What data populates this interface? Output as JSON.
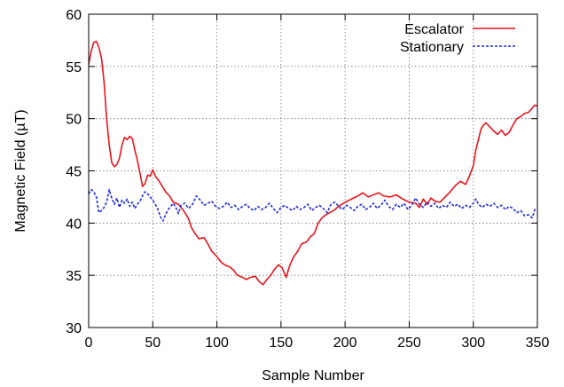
{
  "chart_data": {
    "type": "line",
    "title": "",
    "xlabel": "Sample Number",
    "ylabel": "Magnetic Field (µT)",
    "xlim": [
      0,
      350
    ],
    "ylim": [
      30,
      60
    ],
    "xticks": [
      0,
      50,
      100,
      150,
      200,
      250,
      300,
      350
    ],
    "yticks": [
      30,
      35,
      40,
      45,
      50,
      55,
      60
    ],
    "x_tick_labels": [
      "0",
      "50",
      "100",
      "150",
      "200",
      "250",
      "300",
      "350"
    ],
    "y_tick_labels": [
      "30",
      "35",
      "40",
      "45",
      "50",
      "55",
      "60"
    ],
    "grid": true,
    "legend_position": "top-right",
    "series": [
      {
        "name": "Escalator",
        "color": "#e8141c",
        "style": "solid",
        "points": [
          [
            0,
            55.2
          ],
          [
            2,
            56.5
          ],
          [
            4,
            57.3
          ],
          [
            6,
            57.4
          ],
          [
            8,
            56.8
          ],
          [
            10,
            55.8
          ],
          [
            12,
            53.5
          ],
          [
            14,
            50.0
          ],
          [
            16,
            47.5
          ],
          [
            18,
            45.8
          ],
          [
            20,
            45.4
          ],
          [
            22,
            45.6
          ],
          [
            24,
            46.2
          ],
          [
            26,
            47.5
          ],
          [
            28,
            48.2
          ],
          [
            30,
            48.0
          ],
          [
            32,
            48.3
          ],
          [
            34,
            48.1
          ],
          [
            36,
            47.0
          ],
          [
            38,
            46.0
          ],
          [
            40,
            44.8
          ],
          [
            42,
            43.5
          ],
          [
            44,
            43.8
          ],
          [
            46,
            44.6
          ],
          [
            48,
            44.5
          ],
          [
            50,
            45.1
          ],
          [
            52,
            44.5
          ],
          [
            55,
            44.0
          ],
          [
            58,
            43.4
          ],
          [
            60,
            43.0
          ],
          [
            63,
            42.6
          ],
          [
            66,
            42.0
          ],
          [
            70,
            41.8
          ],
          [
            74,
            41.2
          ],
          [
            78,
            40.4
          ],
          [
            80,
            39.6
          ],
          [
            83,
            39.0
          ],
          [
            86,
            38.5
          ],
          [
            90,
            38.6
          ],
          [
            93,
            38.0
          ],
          [
            96,
            37.3
          ],
          [
            100,
            36.8
          ],
          [
            103,
            36.3
          ],
          [
            106,
            36.0
          ],
          [
            110,
            35.8
          ],
          [
            113,
            35.5
          ],
          [
            116,
            35.0
          ],
          [
            120,
            34.8
          ],
          [
            123,
            34.6
          ],
          [
            126,
            34.8
          ],
          [
            130,
            34.9
          ],
          [
            133,
            34.4
          ],
          [
            136,
            34.1
          ],
          [
            139,
            34.6
          ],
          [
            142,
            35.0
          ],
          [
            145,
            35.6
          ],
          [
            148,
            36.0
          ],
          [
            151,
            35.7
          ],
          [
            154,
            34.8
          ],
          [
            157,
            36.0
          ],
          [
            160,
            36.8
          ],
          [
            163,
            37.3
          ],
          [
            166,
            38.0
          ],
          [
            170,
            38.2
          ],
          [
            173,
            38.7
          ],
          [
            176,
            39.0
          ],
          [
            179,
            40.0
          ],
          [
            182,
            40.5
          ],
          [
            185,
            40.8
          ],
          [
            188,
            41.0
          ],
          [
            191,
            41.2
          ],
          [
            195,
            41.6
          ],
          [
            200,
            42.0
          ],
          [
            205,
            42.3
          ],
          [
            210,
            42.6
          ],
          [
            214,
            42.9
          ],
          [
            218,
            42.5
          ],
          [
            222,
            42.7
          ],
          [
            226,
            42.9
          ],
          [
            230,
            42.6
          ],
          [
            235,
            42.5
          ],
          [
            240,
            42.7
          ],
          [
            245,
            42.3
          ],
          [
            250,
            42.0
          ],
          [
            255,
            41.9
          ],
          [
            258,
            41.5
          ],
          [
            261,
            42.3
          ],
          [
            264,
            41.8
          ],
          [
            267,
            42.4
          ],
          [
            270,
            42.1
          ],
          [
            274,
            42.0
          ],
          [
            278,
            42.5
          ],
          [
            282,
            43.0
          ],
          [
            286,
            43.6
          ],
          [
            290,
            44.0
          ],
          [
            294,
            43.7
          ],
          [
            297,
            44.5
          ],
          [
            300,
            45.5
          ],
          [
            302,
            47.0
          ],
          [
            304,
            48.0
          ],
          [
            306,
            49.0
          ],
          [
            308,
            49.4
          ],
          [
            310,
            49.6
          ],
          [
            313,
            49.2
          ],
          [
            316,
            48.8
          ],
          [
            319,
            48.5
          ],
          [
            322,
            48.9
          ],
          [
            325,
            48.4
          ],
          [
            328,
            48.7
          ],
          [
            331,
            49.4
          ],
          [
            334,
            50.0
          ],
          [
            337,
            50.2
          ],
          [
            340,
            50.5
          ],
          [
            343,
            50.6
          ],
          [
            346,
            51.0
          ],
          [
            348,
            51.3
          ],
          [
            350,
            51.2
          ]
        ]
      },
      {
        "name": "Stationary",
        "color": "#1c2bd9",
        "style": "dashed",
        "points": [
          [
            0,
            42.8
          ],
          [
            2,
            43.2
          ],
          [
            4,
            43.0
          ],
          [
            6,
            42.5
          ],
          [
            8,
            41.0
          ],
          [
            10,
            41.2
          ],
          [
            12,
            41.5
          ],
          [
            14,
            42.0
          ],
          [
            16,
            43.2
          ],
          [
            18,
            42.4
          ],
          [
            20,
            41.8
          ],
          [
            22,
            42.4
          ],
          [
            24,
            41.5
          ],
          [
            26,
            42.2
          ],
          [
            28,
            41.9
          ],
          [
            30,
            42.3
          ],
          [
            32,
            41.6
          ],
          [
            34,
            42.0
          ],
          [
            36,
            41.4
          ],
          [
            38,
            41.8
          ],
          [
            40,
            42.1
          ],
          [
            42,
            42.6
          ],
          [
            44,
            43.0
          ],
          [
            46,
            42.8
          ],
          [
            48,
            42.5
          ],
          [
            50,
            42.2
          ],
          [
            52,
            41.8
          ],
          [
            54,
            41.3
          ],
          [
            56,
            40.6
          ],
          [
            58,
            40.2
          ],
          [
            60,
            40.8
          ],
          [
            62,
            41.3
          ],
          [
            64,
            41.6
          ],
          [
            66,
            41.9
          ],
          [
            68,
            41.5
          ],
          [
            70,
            40.9
          ],
          [
            72,
            41.7
          ],
          [
            75,
            41.9
          ],
          [
            78,
            41.4
          ],
          [
            81,
            41.8
          ],
          [
            84,
            42.6
          ],
          [
            87,
            42.2
          ],
          [
            90,
            41.7
          ],
          [
            93,
            41.9
          ],
          [
            96,
            42.1
          ],
          [
            99,
            41.6
          ],
          [
            102,
            41.4
          ],
          [
            105,
            41.6
          ],
          [
            108,
            42.0
          ],
          [
            111,
            41.5
          ],
          [
            114,
            41.7
          ],
          [
            117,
            41.3
          ],
          [
            120,
            41.6
          ],
          [
            123,
            41.8
          ],
          [
            126,
            41.4
          ],
          [
            129,
            41.2
          ],
          [
            132,
            41.6
          ],
          [
            135,
            41.3
          ],
          [
            138,
            41.5
          ],
          [
            141,
            41.9
          ],
          [
            144,
            41.4
          ],
          [
            147,
            41.0
          ],
          [
            150,
            41.5
          ],
          [
            153,
            41.7
          ],
          [
            156,
            41.4
          ],
          [
            159,
            41.2
          ],
          [
            162,
            41.6
          ],
          [
            165,
            41.3
          ],
          [
            168,
            41.5
          ],
          [
            171,
            41.8
          ],
          [
            174,
            41.2
          ],
          [
            177,
            41.5
          ],
          [
            180,
            41.7
          ],
          [
            183,
            41.4
          ],
          [
            186,
            41.0
          ],
          [
            189,
            41.8
          ],
          [
            192,
            42.0
          ],
          [
            195,
            41.6
          ],
          [
            198,
            41.3
          ],
          [
            201,
            41.7
          ],
          [
            204,
            41.5
          ],
          [
            207,
            41.2
          ],
          [
            210,
            41.6
          ],
          [
            213,
            41.8
          ],
          [
            216,
            41.3
          ],
          [
            219,
            41.5
          ],
          [
            222,
            41.9
          ],
          [
            225,
            41.4
          ],
          [
            228,
            41.7
          ],
          [
            231,
            42.2
          ],
          [
            234,
            41.6
          ],
          [
            237,
            41.3
          ],
          [
            240,
            41.8
          ],
          [
            243,
            41.5
          ],
          [
            246,
            41.9
          ],
          [
            249,
            41.3
          ],
          [
            252,
            41.7
          ],
          [
            255,
            42.4
          ],
          [
            258,
            41.8
          ],
          [
            261,
            41.5
          ],
          [
            264,
            42.0
          ],
          [
            267,
            41.6
          ],
          [
            270,
            41.9
          ],
          [
            273,
            41.4
          ],
          [
            276,
            41.7
          ],
          [
            279,
            41.5
          ],
          [
            282,
            42.0
          ],
          [
            285,
            41.6
          ],
          [
            288,
            41.8
          ],
          [
            291,
            41.4
          ],
          [
            294,
            41.7
          ],
          [
            297,
            41.5
          ],
          [
            300,
            41.9
          ],
          [
            302,
            42.3
          ],
          [
            304,
            41.8
          ],
          [
            307,
            41.5
          ],
          [
            310,
            41.8
          ],
          [
            313,
            41.6
          ],
          [
            316,
            41.9
          ],
          [
            319,
            41.5
          ],
          [
            322,
            41.7
          ],
          [
            325,
            41.3
          ],
          [
            328,
            41.6
          ],
          [
            331,
            41.4
          ],
          [
            334,
            41.0
          ],
          [
            337,
            41.2
          ],
          [
            340,
            40.7
          ],
          [
            343,
            40.8
          ],
          [
            346,
            40.5
          ],
          [
            348,
            41.3
          ],
          [
            350,
            41.2
          ]
        ]
      }
    ]
  }
}
